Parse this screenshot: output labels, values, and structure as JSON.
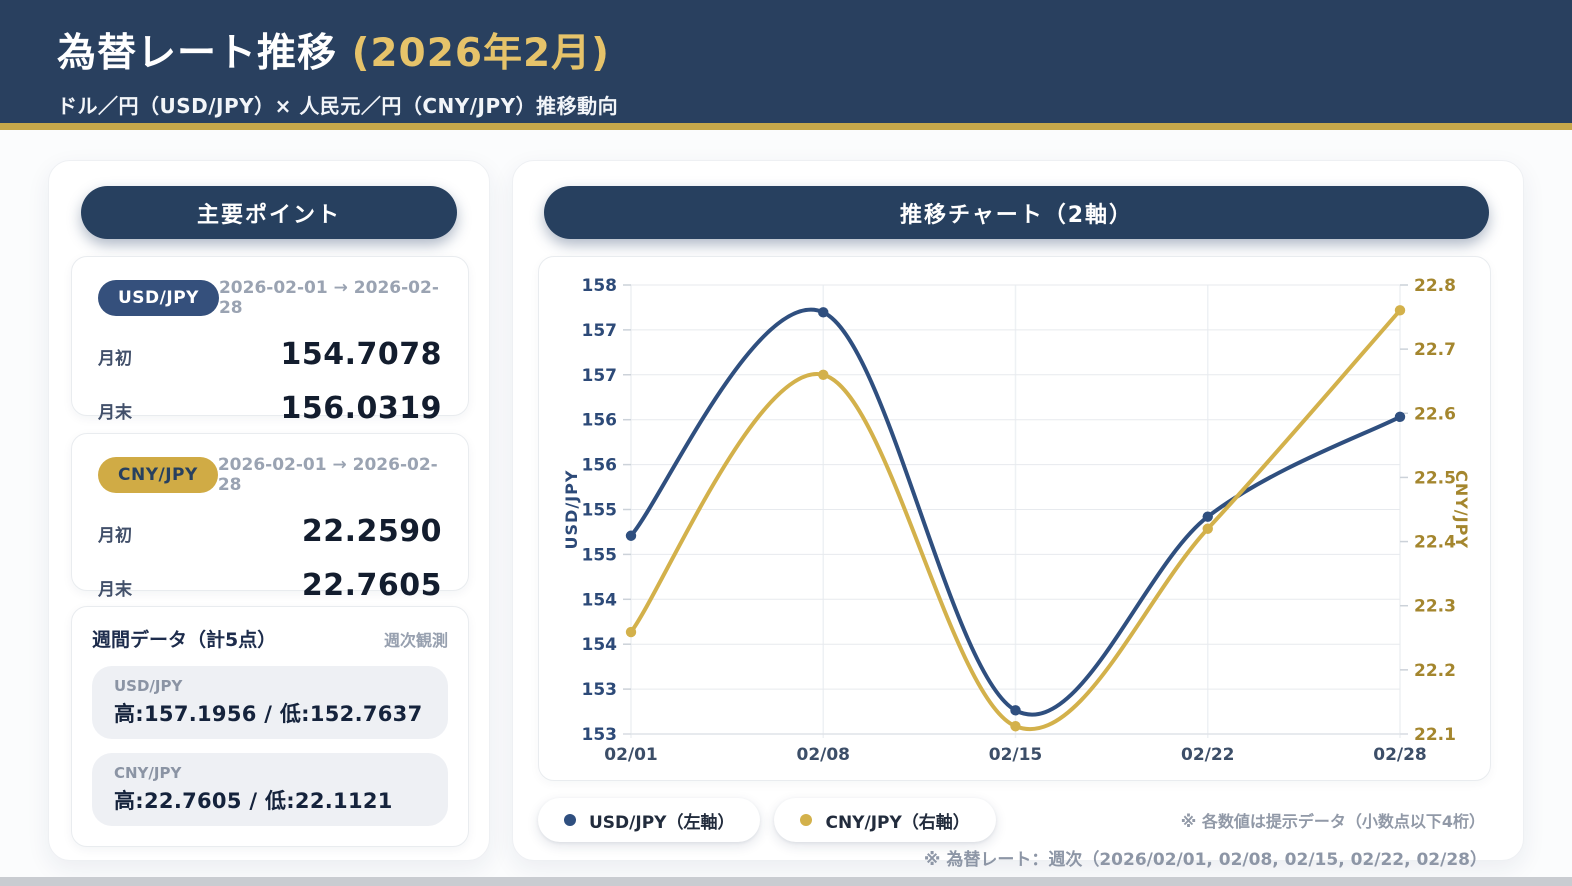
{
  "header": {
    "title": "為替レート推移",
    "title_accent": "(2026年2月)",
    "subtitle": "ドル／円（USD/JPY）× 人民元／円（CNY/JPY）推移動向"
  },
  "colors": {
    "header_navy": "#29405f",
    "gold_border": "#c7a84a",
    "gold_accent_text": "#e6c36a",
    "pill_navy": "#27405f",
    "usd_line": "#2f4f7f",
    "cny_line": "#d3b14b",
    "left_axis_text": "#2d4a78",
    "right_axis_text": "#a4862e",
    "grid": "#e7eaee"
  },
  "sidebar": {
    "title": "主要ポイント",
    "cards": [
      {
        "pair": "USD/JPY",
        "range": "2026-02-01 → 2026-02-28",
        "rows": [
          {
            "label": "月初",
            "value": "154.7078"
          },
          {
            "label": "月末",
            "value": "156.0319"
          }
        ]
      },
      {
        "pair": "CNY/JPY",
        "range": "2026-02-01 → 2026-02-28",
        "rows": [
          {
            "label": "月初",
            "value": "22.2590"
          },
          {
            "label": "月末",
            "value": "22.7605"
          }
        ]
      }
    ],
    "weekly": {
      "title": "週間データ（計5点）",
      "badge": "週次観測",
      "items": [
        {
          "label": "USD/JPY",
          "value": "高:157.1956 / 低:152.7637"
        },
        {
          "label": "CNY/JPY",
          "value": "高:22.7605 / 低:22.1121"
        }
      ]
    }
  },
  "chart_panel": {
    "title": "推移チャート（2軸）",
    "legend": [
      {
        "label": "USD/JPY（左軸）",
        "color": "#2f4f7f"
      },
      {
        "label": "CNY/JPY（右軸）",
        "color": "#d3b14b"
      }
    ],
    "note_precision": "※ 各数値は提示データ（小数点以下4桁）",
    "note_source": "※ 為替レート：週次（2026/02/01, 02/08, 02/15, 02/22, 02/28）"
  },
  "chart_data": {
    "type": "line",
    "x": [
      "02/01",
      "02/08",
      "02/15",
      "02/22",
      "02/28"
    ],
    "series": [
      {
        "name": "USD/JPY（左軸）",
        "axis": "left",
        "color": "#2f4f7f",
        "values": [
          154.7078,
          157.1956,
          152.7637,
          154.92,
          156.0319
        ]
      },
      {
        "name": "CNY/JPY（右軸）",
        "axis": "right",
        "color": "#d3b14b",
        "values": [
          22.259,
          22.66,
          22.1121,
          22.42,
          22.7605
        ]
      }
    ],
    "left_axis": {
      "label": "USD/JPY",
      "min": 152.5,
      "max": 157.5,
      "tick_step": 0.5,
      "tick_labels": [
        "158",
        "157",
        "157",
        "156",
        "156",
        "155",
        "155",
        "154",
        "154",
        "153",
        "153"
      ]
    },
    "right_axis": {
      "label": "CNY/JPY",
      "min": 22.1,
      "max": 22.8,
      "tick_step": 0.1,
      "tick_labels": [
        "22.8",
        "22.7",
        "22.6",
        "22.5",
        "22.4",
        "22.3",
        "22.2",
        "22.1"
      ]
    },
    "grid": true,
    "legend_position": "bottom",
    "smoothing": "spline"
  }
}
